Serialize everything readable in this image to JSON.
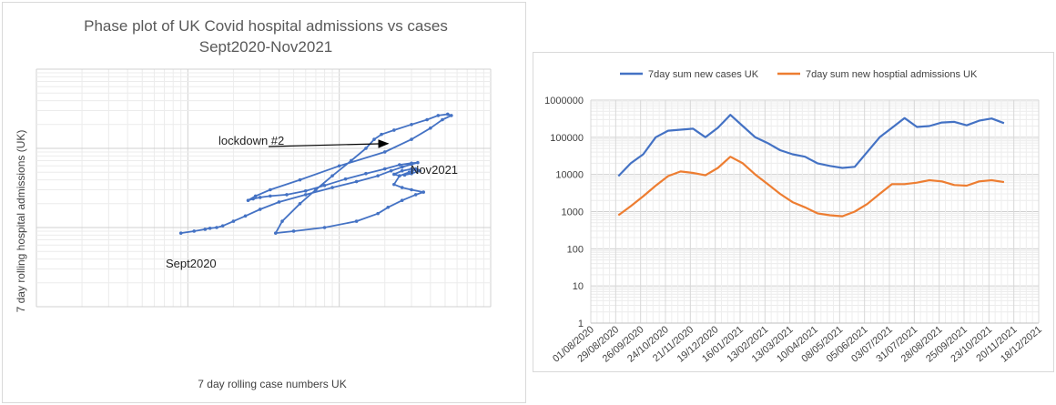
{
  "chart_data": [
    {
      "type": "line",
      "subtype": "phase-plot",
      "title": [
        "Phase plot of UK Covid hospital admissions vs cases",
        "Sept2020-Nov2021"
      ],
      "xlabel": "7 day rolling case numbers UK",
      "ylabel": "7 day rolling hospital admissions (UK)",
      "xscale": "log",
      "yscale": "log",
      "xlim": [
        1000,
        1000000
      ],
      "ylim": [
        100,
        100000
      ],
      "tick_labels_shown": false,
      "grid": true,
      "line_color": "#4472C4",
      "annotations": [
        {
          "text": "lockdown #2",
          "arrow_to": [
            210000,
            11500
          ]
        },
        {
          "text": "Nov2021",
          "at": [
            250000,
            5000
          ]
        },
        {
          "text": "Sept2020",
          "at": [
            9000,
            850
          ]
        }
      ],
      "series": [
        {
          "x": [
            9000,
            11000,
            13000,
            14000,
            15500,
            17000,
            20000,
            24000,
            30000,
            40000,
            60000,
            90000,
            130000,
            180000,
            220000,
            260000,
            300000,
            330000,
            300000,
            250000,
            200000,
            150000,
            110000,
            80000,
            60000,
            45000,
            35000,
            30000,
            27000,
            25000,
            28000,
            35000,
            55000,
            100000,
            200000,
            300000,
            400000,
            480000,
            550000,
            520000,
            450000,
            380000,
            300000,
            230000,
            190000,
            170000,
            150000,
            120000,
            90000,
            70000,
            55000,
            42000,
            38000,
            50000,
            80000,
            130000,
            180000,
            210000,
            260000,
            320000,
            360000,
            300000,
            260000,
            230000,
            250000,
            300000,
            320000,
            290000,
            250000,
            230000,
            260000,
            300000,
            330000,
            340000,
            300000,
            270000
          ],
          "y": [
            850,
            900,
            950,
            980,
            1000,
            1050,
            1200,
            1400,
            1700,
            2100,
            2600,
            3200,
            3800,
            4500,
            5200,
            5800,
            6300,
            6600,
            6500,
            6200,
            5500,
            4800,
            4100,
            3400,
            2900,
            2600,
            2500,
            2400,
            2300,
            2200,
            2500,
            3000,
            4000,
            6000,
            9000,
            13000,
            18000,
            23000,
            26000,
            27000,
            26000,
            23000,
            20000,
            17000,
            15000,
            13000,
            10000,
            7000,
            4500,
            3000,
            2000,
            1200,
            850,
            900,
            1000,
            1200,
            1500,
            1800,
            2200,
            2600,
            2800,
            3000,
            3200,
            3500,
            4500,
            5000,
            5500,
            5000,
            4500,
            4700,
            5200,
            5500,
            5300,
            5200,
            4800,
            4600
          ]
        }
      ]
    },
    {
      "type": "line",
      "xlabel": "",
      "ylabel": "",
      "yscale": "log",
      "ylim": [
        1,
        1000000
      ],
      "yticks": [
        "1",
        "10",
        "100",
        "1000",
        "10000",
        "100000",
        "1000000"
      ],
      "xticks": [
        "01/08/2020",
        "29/08/2020",
        "26/09/2020",
        "24/10/2020",
        "21/11/2020",
        "19/12/2020",
        "16/01/2021",
        "13/02/2021",
        "13/03/2021",
        "10/04/2021",
        "08/05/2021",
        "05/06/2021",
        "03/07/2021",
        "31/07/2021",
        "28/08/2021",
        "25/09/2021",
        "23/10/2021",
        "20/11/2021",
        "18/12/2021"
      ],
      "xlim": [
        "2020-08-01",
        "2021-12-18"
      ],
      "grid": true,
      "legend": "top",
      "x": [
        "2020-09-01",
        "2020-09-15",
        "2020-09-29",
        "2020-10-13",
        "2020-10-27",
        "2020-11-10",
        "2020-11-24",
        "2020-12-08",
        "2020-12-22",
        "2021-01-05",
        "2021-01-19",
        "2021-02-02",
        "2021-02-16",
        "2021-03-02",
        "2021-03-16",
        "2021-03-30",
        "2021-04-13",
        "2021-04-27",
        "2021-05-11",
        "2021-05-25",
        "2021-06-08",
        "2021-06-22",
        "2021-07-06",
        "2021-07-20",
        "2021-08-03",
        "2021-08-17",
        "2021-08-31",
        "2021-09-14",
        "2021-09-28",
        "2021-10-12",
        "2021-10-26",
        "2021-11-09"
      ],
      "series": [
        {
          "name": "7day sum new cases UK",
          "color": "#4472C4",
          "values": [
            9000,
            20000,
            35000,
            100000,
            150000,
            160000,
            170000,
            100000,
            180000,
            400000,
            200000,
            100000,
            70000,
            45000,
            35000,
            30000,
            20000,
            17000,
            15000,
            16000,
            40000,
            100000,
            180000,
            330000,
            190000,
            200000,
            250000,
            260000,
            210000,
            280000,
            320000,
            240000
          ]
        },
        {
          "name": "7day sum new hosptial admissions UK",
          "color": "#ED7D31",
          "values": [
            800,
            1400,
            2600,
            5000,
            9000,
            12000,
            11000,
            9500,
            15000,
            30000,
            20000,
            10000,
            5500,
            3000,
            1800,
            1300,
            900,
            800,
            750,
            1000,
            1600,
            3000,
            5500,
            5500,
            6000,
            7000,
            6500,
            5200,
            5000,
            6500,
            7000,
            6200
          ]
        }
      ]
    }
  ]
}
